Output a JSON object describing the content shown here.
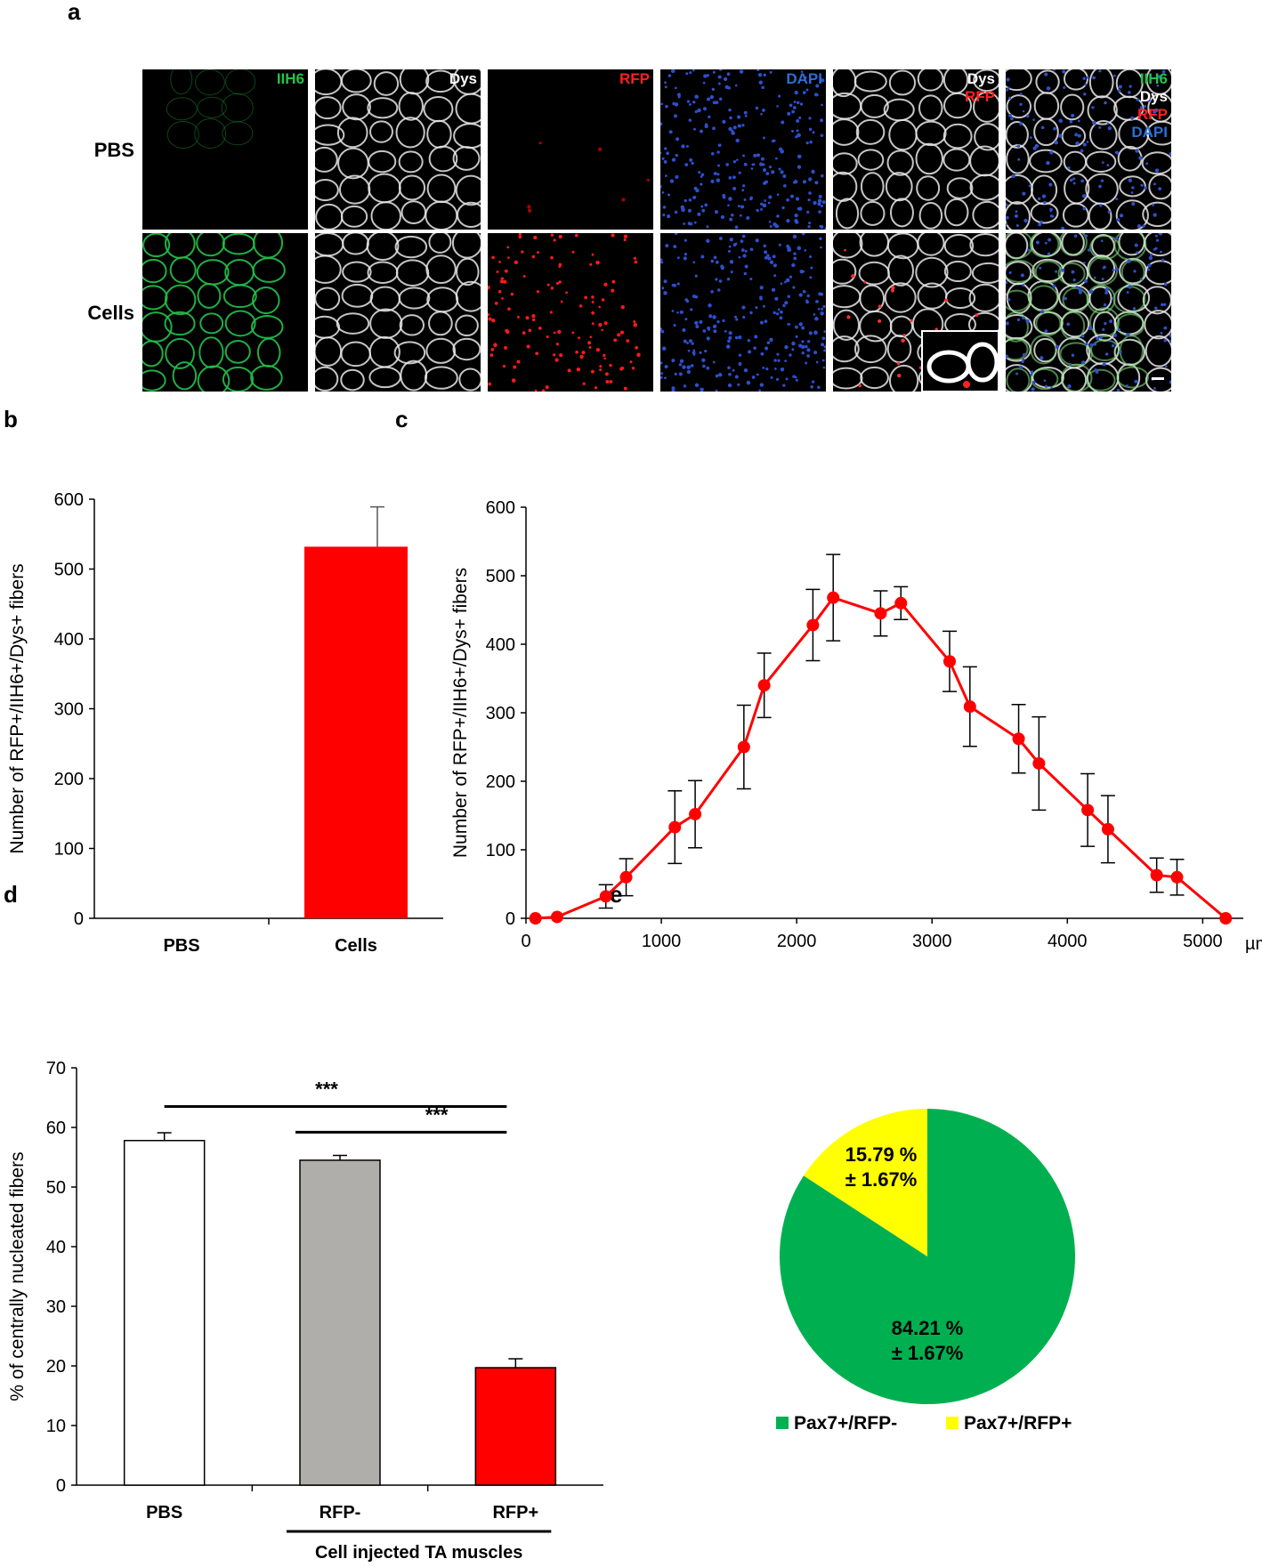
{
  "panel_labels": [
    "a",
    "b",
    "c",
    "d",
    "e"
  ],
  "micrograph": {
    "rows": [
      "PBS",
      "Cells"
    ],
    "columns": [
      {
        "labels": [
          {
            "text": "IIH6",
            "color": "#22c24a"
          }
        ]
      },
      {
        "labels": [
          {
            "text": "Dys",
            "color": "#ffffff"
          }
        ]
      },
      {
        "labels": [
          {
            "text": "RFP",
            "color": "#ff2020"
          }
        ]
      },
      {
        "labels": [
          {
            "text": "DAPI",
            "color": "#2a6fd6"
          }
        ]
      },
      {
        "labels": [
          {
            "text": "Dys",
            "color": "#ffffff"
          },
          {
            "text": "RFP",
            "color": "#ff2020"
          }
        ]
      },
      {
        "labels": [
          {
            "text": "IIH6",
            "color": "#22c24a"
          },
          {
            "text": "Dys",
            "color": "#ffffff"
          },
          {
            "text": "RFP",
            "color": "#ff2020"
          },
          {
            "text": "DAPI",
            "color": "#2a6fd6"
          }
        ]
      }
    ]
  },
  "chart_data": [
    {
      "id": "b",
      "type": "bar",
      "categories": [
        "PBS",
        "Cells"
      ],
      "values": [
        0,
        532
      ],
      "errors": [
        0,
        57
      ],
      "colors": [
        "#ff0000",
        "#ff0000"
      ],
      "ylabel": "Number of RFP+/IIH6+/Dys+ fibers",
      "ylim": [
        0,
        600
      ],
      "yticks": [
        0,
        100,
        200,
        300,
        400,
        500,
        600
      ]
    },
    {
      "id": "c",
      "type": "line",
      "x": [
        70,
        230,
        590,
        740,
        1100,
        1250,
        1610,
        1760,
        2120,
        2270,
        2620,
        2770,
        3130,
        3280,
        3640,
        3790,
        4150,
        4300,
        4660,
        4810,
        5170
      ],
      "y": [
        0,
        2,
        32,
        60,
        133,
        152,
        250,
        340,
        428,
        468,
        445,
        460,
        375,
        309,
        262,
        226,
        158,
        130,
        63,
        60,
        0
      ],
      "errors": [
        0,
        0,
        17,
        27,
        53,
        49,
        61,
        47,
        52,
        63,
        33,
        24,
        44,
        58,
        50,
        68,
        53,
        49,
        25,
        26,
        0
      ],
      "color": "#ff0000",
      "ylabel": "Number of RFP+/IIH6+/Dys+ fibers",
      "xunit": "µm",
      "xlim": [
        0,
        5300
      ],
      "ylim": [
        0,
        600
      ],
      "xticks": [
        0,
        1000,
        2000,
        3000,
        4000,
        5000
      ],
      "yticks": [
        0,
        100,
        200,
        300,
        400,
        500,
        600
      ]
    },
    {
      "id": "d",
      "type": "bar",
      "categories": [
        "PBS",
        "RFP-",
        "RFP+"
      ],
      "values": [
        57.8,
        54.5,
        19.7
      ],
      "errors": [
        1.3,
        0.8,
        1.5
      ],
      "colors": [
        "#ffffff",
        "#b0aeab",
        "#ff0000"
      ],
      "ylabel": "% of centrally nucleated fibers",
      "ylim": [
        0,
        70
      ],
      "yticks": [
        0,
        10,
        20,
        30,
        40,
        50,
        60,
        70
      ],
      "group_label": "Cell injected TA muscles",
      "significance": [
        {
          "from": 0,
          "to": 2,
          "label": "***"
        },
        {
          "from": 1,
          "to": 2,
          "label": "***"
        }
      ]
    },
    {
      "id": "e",
      "type": "pie",
      "slices": [
        {
          "label": "Pax7+/RFP-",
          "value": 84.21,
          "text1": "84.21 %",
          "text2": "± 1.67%",
          "color": "#00b050"
        },
        {
          "label": "Pax7+/RFP+",
          "value": 15.79,
          "text1": "15.79 %",
          "text2": "± 1.67%",
          "color": "#ffff00"
        }
      ]
    }
  ]
}
